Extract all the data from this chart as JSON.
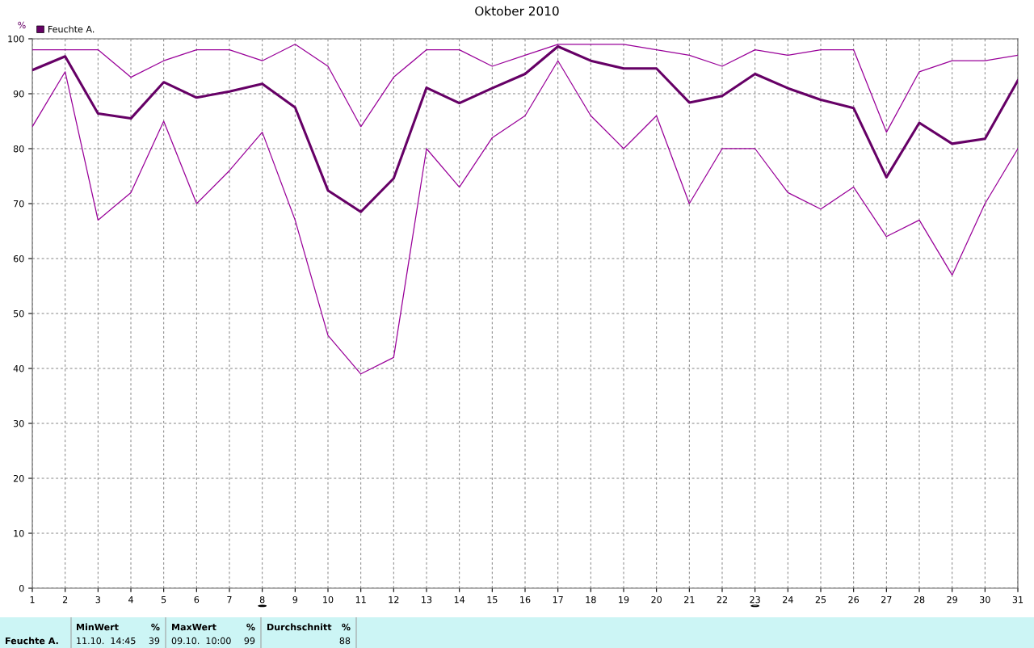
{
  "chart_data": {
    "type": "line",
    "title": "Oktober 2010",
    "ylabel": "%",
    "x": [
      1,
      2,
      3,
      4,
      5,
      6,
      7,
      8,
      9,
      10,
      11,
      12,
      13,
      14,
      15,
      16,
      17,
      18,
      19,
      20,
      21,
      22,
      23,
      24,
      25,
      26,
      27,
      28,
      29,
      30,
      31
    ],
    "series": [
      {
        "color": "#990099",
        "values": [
          98,
          98,
          98,
          93,
          96,
          98,
          98,
          96,
          99,
          95,
          84,
          93,
          98,
          98,
          95,
          97,
          99,
          99,
          99,
          98,
          97,
          95,
          98,
          97,
          98,
          98,
          83,
          94,
          96,
          96,
          97
        ]
      },
      {
        "name": "Feuchte A.",
        "color": "#660066",
        "values": [
          94.3,
          96.8,
          86.4,
          85.5,
          92.1,
          89.3,
          90.4,
          91.8,
          87.5,
          72.4,
          68.5,
          74.6,
          91.1,
          88.3,
          91,
          93.6,
          98.6,
          96,
          94.6,
          94.6,
          88.4,
          89.6,
          93.6,
          91,
          88.9,
          87.4,
          74.8,
          84.7,
          80.9,
          81.8,
          92.4
        ]
      },
      {
        "color": "#990099",
        "values": [
          84,
          94,
          67,
          72,
          85,
          70,
          76,
          83,
          67,
          46,
          39,
          42,
          80,
          73,
          82,
          86,
          96,
          86,
          80,
          86,
          70,
          80,
          80,
          72,
          69,
          73,
          64,
          67,
          57,
          70,
          80
        ]
      }
    ],
    "xlim": [
      1,
      31
    ],
    "xticks": [
      1,
      2,
      3,
      4,
      5,
      6,
      7,
      8,
      9,
      10,
      11,
      12,
      13,
      14,
      15,
      16,
      17,
      18,
      19,
      20,
      21,
      22,
      23,
      24,
      25,
      26,
      27,
      28,
      29,
      30,
      31
    ],
    "ylim": [
      0,
      100
    ],
    "yticks": [
      0,
      10,
      20,
      30,
      40,
      50,
      60,
      70,
      80,
      90,
      100
    ],
    "grid": true,
    "legend": "top left",
    "marker": "none",
    "line_style": "solid",
    "annotations": [
      "Feuchte A.",
      "MinWert",
      "%",
      "11.10.  14:45",
      "39",
      "MaxWert",
      "%",
      "09.10.  10:00",
      "99",
      "Durchschnitt",
      "%",
      "88"
    ]
  }
}
